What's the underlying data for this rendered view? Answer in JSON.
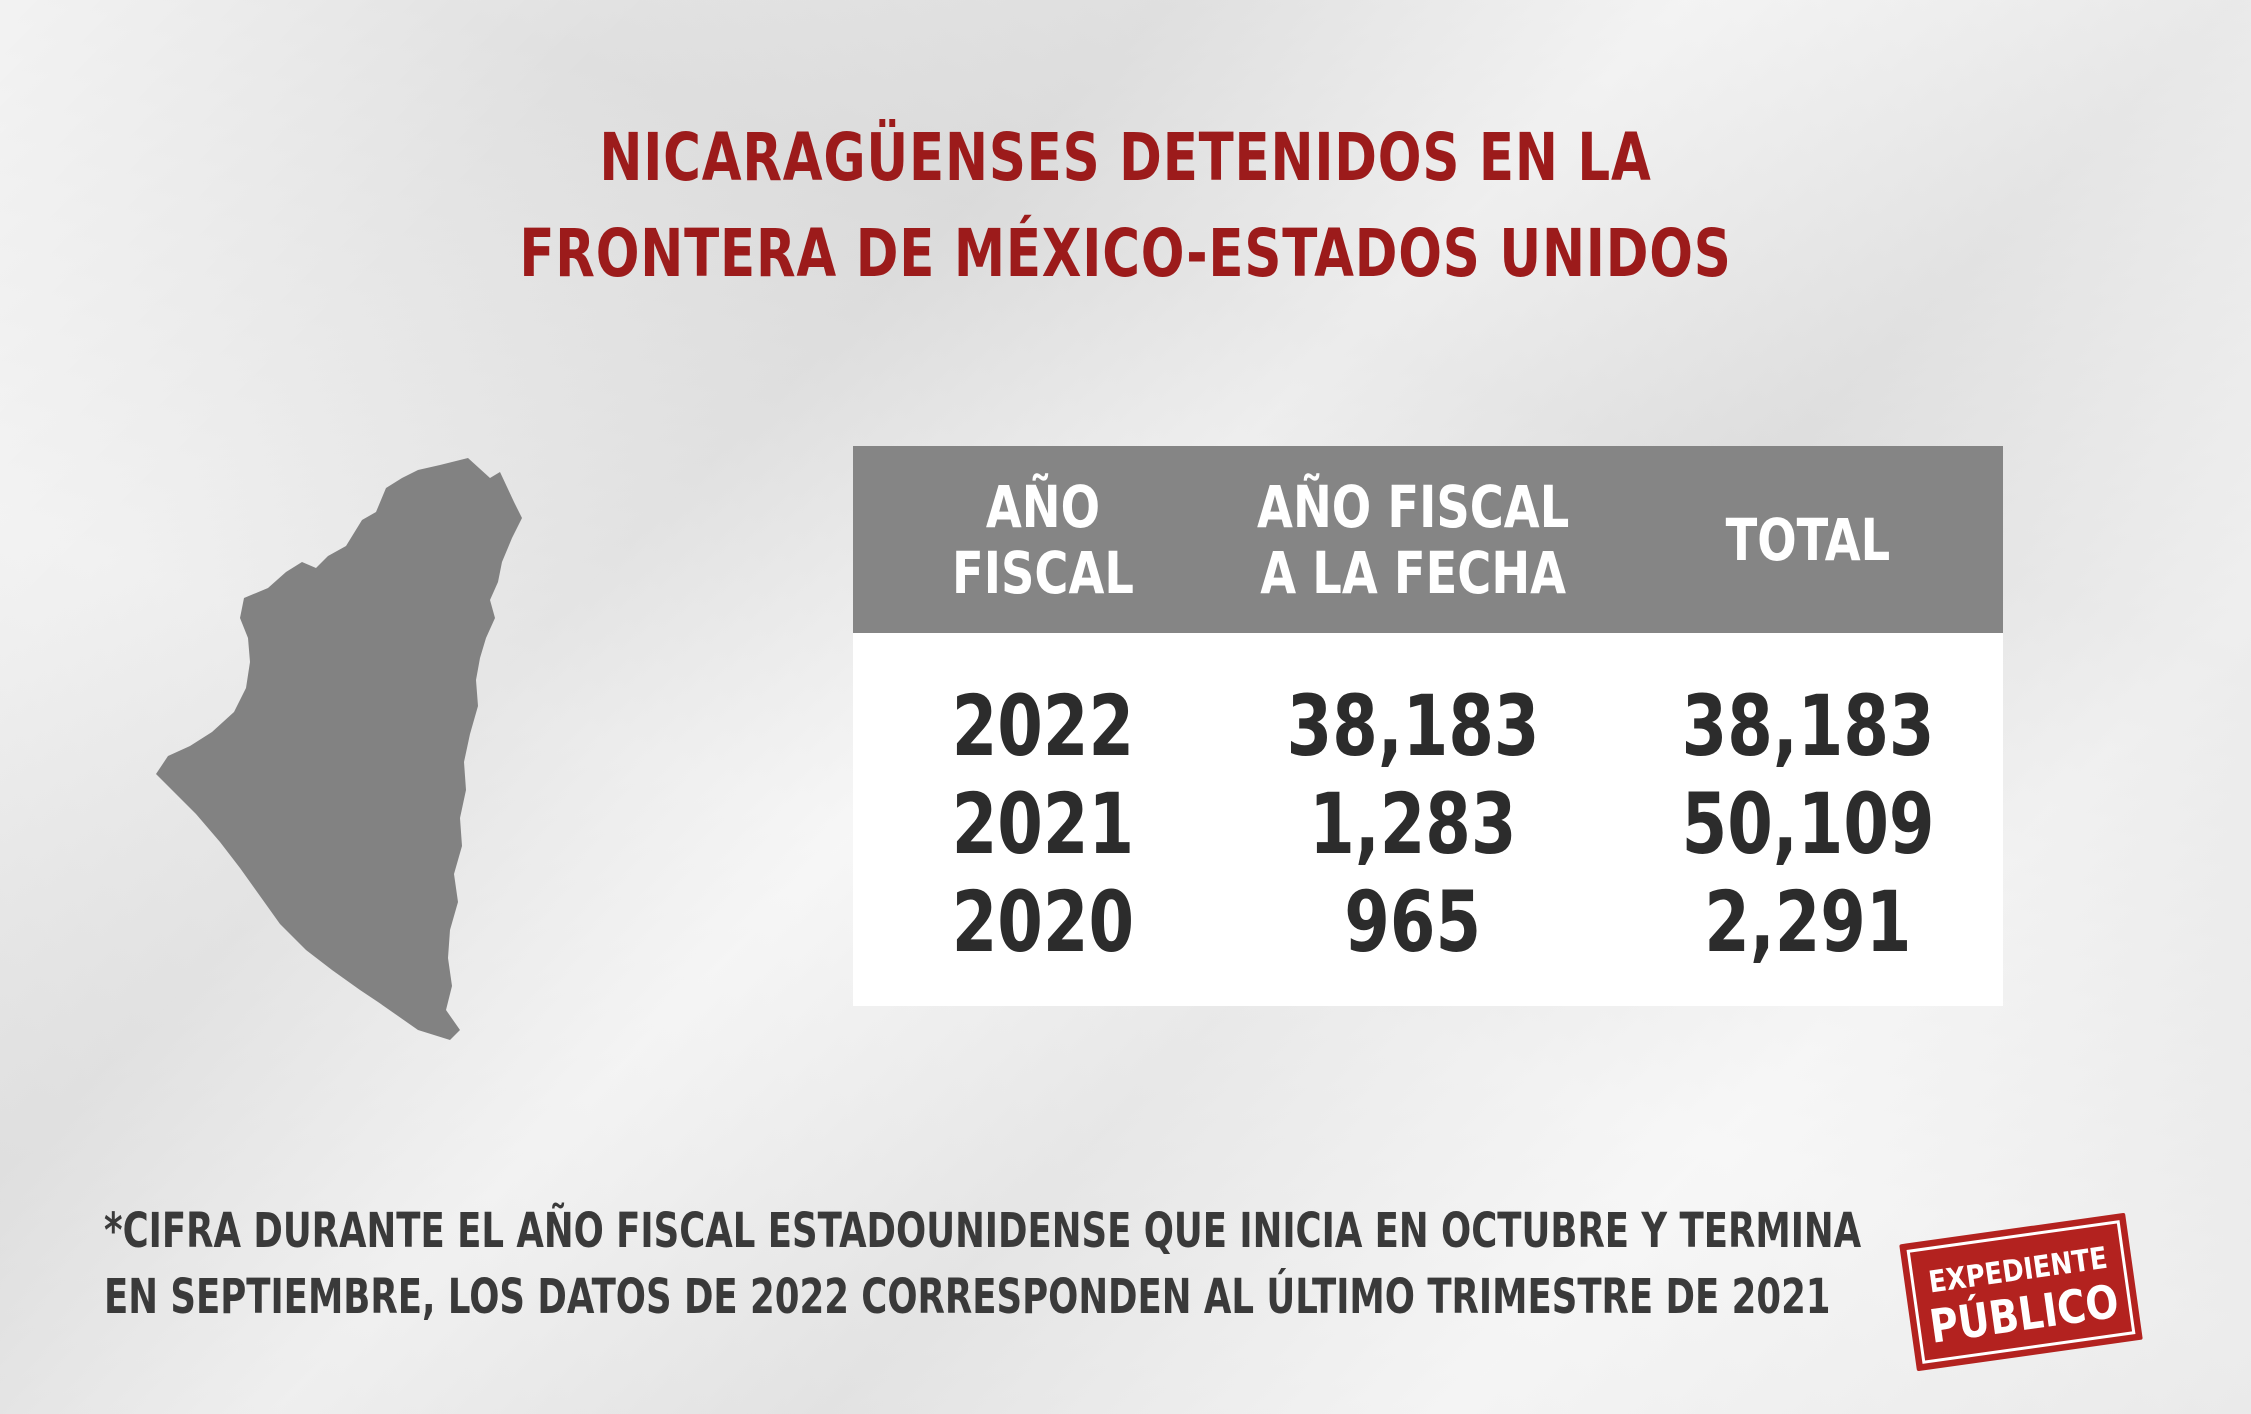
{
  "title": {
    "line1": "NICARAGÜENSES DETENIDOS EN LA",
    "line2": "FRONTERA DE MÉXICO-ESTADOS UNIDOS"
  },
  "map": {
    "icon": "nicaragua-map-icon",
    "fill_color": "#828282"
  },
  "table": {
    "headers": {
      "col1": "AÑO FISCAL",
      "col2_line1": "AÑO FISCAL",
      "col2_line2": "A LA FECHA",
      "col3": "TOTAL"
    },
    "header_color": "#858585",
    "rows": [
      {
        "year": "2022",
        "ytd": "38,183",
        "total": "38,183"
      },
      {
        "year": "2021",
        "ytd": "1,283",
        "total": "50,109"
      },
      {
        "year": "2020",
        "ytd": "965",
        "total": "2,291"
      }
    ]
  },
  "footnote": {
    "line1": "*CIFRA DURANTE EL AÑO FISCAL ESTADOUNIDENSE QUE INICIA EN OCTUBRE Y TERMINA",
    "line2": "EN SEPTIEMBRE, LOS DATOS DE 2022 CORRESPONDEN AL ÚLTIMO TRIMESTRE DE 2021"
  },
  "logo": {
    "line1": "EXPEDIENTE",
    "line2": "PÚBLICO",
    "color": "#b3221f"
  }
}
